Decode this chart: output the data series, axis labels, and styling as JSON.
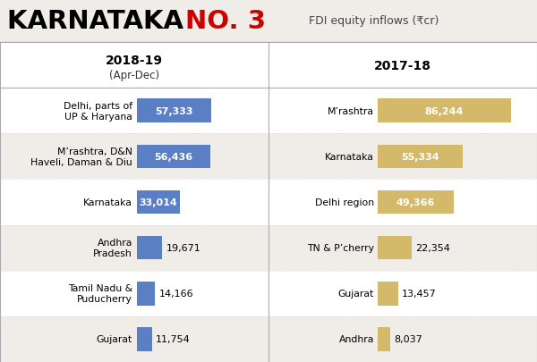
{
  "title_black": "KARNATAKA ",
  "title_red": "NO. 3",
  "title_subtitle": "FDI equity inflows (₹cr)",
  "col1_header": "2018-19",
  "col1_subheader": "(Apr-Dec)",
  "col2_header": "2017-18",
  "left_labels": [
    "Delhi, parts of\nUP & Haryana",
    "M’rashtra, D&N\nHaveli, Daman & Diu",
    "Karnataka",
    "Andhra\nPradesh",
    "Tamil Nadu &\nPuducherry",
    "Gujarat"
  ],
  "left_values": [
    57333,
    56436,
    33014,
    19671,
    14166,
    11754
  ],
  "left_labels_display": [
    "57,333",
    "56,436",
    "33,014",
    "19,671",
    "14,166",
    "11,754"
  ],
  "right_labels": [
    "M’rashtra",
    "Karnataka",
    "Delhi region",
    "TN & P’cherry",
    "Gujarat",
    "Andhra"
  ],
  "right_values": [
    86244,
    55334,
    49366,
    22354,
    13457,
    8037
  ],
  "right_labels_display": [
    "86,244",
    "55,334",
    "49,366",
    "22,354",
    "13,457",
    "8,037"
  ],
  "bar_color_left": "#5b7fc5",
  "bar_color_right": "#d4b96a",
  "bg_color": "#f0ede8",
  "header_bg": "#ffffff",
  "divider_color": "#bbbbbb",
  "title_red_color": "#cc0000",
  "title_bg": "#ffffff",
  "max_value": 90000,
  "n_rows": 6,
  "fig_width": 6.0,
  "fig_height": 4.06,
  "dpi": 100
}
